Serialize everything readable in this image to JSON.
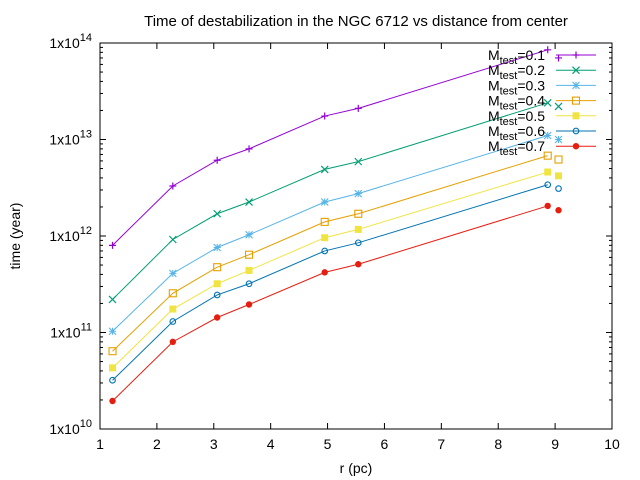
{
  "chart_data": {
    "type": "line",
    "title": "Time of destabilization in the NGC 6712 vs distance from center",
    "xlabel": "r (pc)",
    "ylabel": "time (year)",
    "xlim": [
      1,
      10
    ],
    "ylim": [
      10000000000.0,
      100000000000000.0
    ],
    "y_scale": "log",
    "grid": false,
    "legend_position": "top-right",
    "x_ticks": [
      1,
      2,
      3,
      4,
      5,
      6,
      7,
      8,
      9,
      10
    ],
    "y_ticks": [
      {
        "value": 10000000000.0,
        "base": "1x10",
        "exp": "10"
      },
      {
        "value": 100000000000.0,
        "base": "1x10",
        "exp": "11"
      },
      {
        "value": 1000000000000.0,
        "base": "1x10",
        "exp": "12"
      },
      {
        "value": 10000000000000.0,
        "base": "1x10",
        "exp": "13"
      },
      {
        "value": 100000000000000.0,
        "base": "1x10",
        "exp": "14"
      }
    ],
    "x": [
      1.22,
      2.28,
      3.06,
      3.62,
      4.95,
      5.54,
      8.87,
      9.06
    ],
    "series": [
      {
        "name": "M_test=0.1",
        "label_base": "M",
        "label_sub": "test",
        "label_rest": "=0.1",
        "color": "#9400d3",
        "marker": "plus",
        "values": [
          800000000000.0,
          3300000000000.0,
          6100000000000.0,
          8000000000000.0,
          17500000000000.0,
          21000000000000.0,
          85000000000000.0,
          70000000000000.0
        ]
      },
      {
        "name": "M_test=0.2",
        "label_base": "M",
        "label_sub": "test",
        "label_rest": "=0.2",
        "color": "#009e73",
        "marker": "cross",
        "values": [
          220000000000.0,
          920000000000.0,
          1700000000000.0,
          2250000000000.0,
          4900000000000.0,
          5900000000000.0,
          24000000000000.0,
          22000000000000.0
        ]
      },
      {
        "name": "M_test=0.3",
        "label_base": "M",
        "label_sub": "test",
        "label_rest": "=0.3",
        "color": "#56b4e9",
        "marker": "star",
        "values": [
          103000000000.0,
          410000000000.0,
          760000000000.0,
          1030000000000.0,
          2250000000000.0,
          2750000000000.0,
          11000000000000.0,
          10000000000000.0
        ]
      },
      {
        "name": "M_test=0.4",
        "label_base": "M",
        "label_sub": "test",
        "label_rest": "=0.4",
        "color": "#e69f00",
        "marker": "square-open",
        "values": [
          64000000000.0,
          255000000000.0,
          475000000000.0,
          640000000000.0,
          1400000000000.0,
          1700000000000.0,
          6800000000000.0,
          6200000000000.0
        ]
      },
      {
        "name": "M_test=0.5",
        "label_base": "M",
        "label_sub": "test",
        "label_rest": "=0.5",
        "color": "#f0e442",
        "marker": "square-filled",
        "values": [
          43000000000.0,
          175000000000.0,
          320000000000.0,
          440000000000.0,
          960000000000.0,
          1170000000000.0,
          4600000000000.0,
          4200000000000.0
        ]
      },
      {
        "name": "M_test=0.6",
        "label_base": "M",
        "label_sub": "test",
        "label_rest": "=0.6",
        "color": "#0072b2",
        "marker": "circle-open",
        "values": [
          32000000000.0,
          130000000000.0,
          245000000000.0,
          320000000000.0,
          700000000000.0,
          850000000000.0,
          3400000000000.0,
          3100000000000.0
        ]
      },
      {
        "name": "M_test=0.7",
        "label_base": "M",
        "label_sub": "test",
        "label_rest": "=0.7",
        "color": "#e51e10",
        "marker": "circle-filled",
        "values": [
          19500000000.0,
          80000000000.0,
          143000000000.0,
          195000000000.0,
          420000000000.0,
          510000000000.0,
          2050000000000.0,
          1850000000000.0
        ]
      }
    ]
  }
}
